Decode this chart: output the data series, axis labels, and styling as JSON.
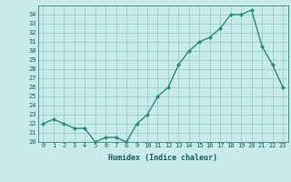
{
  "x": [
    0,
    1,
    2,
    3,
    4,
    5,
    6,
    7,
    8,
    9,
    10,
    11,
    12,
    13,
    14,
    15,
    16,
    17,
    18,
    19,
    20,
    21,
    22,
    23
  ],
  "y": [
    22,
    22.5,
    22,
    21.5,
    21.5,
    20,
    20.5,
    20.5,
    20,
    22,
    23,
    25,
    26,
    28.5,
    30,
    31,
    31.5,
    32.5,
    34,
    34,
    34.5,
    30.5,
    28.5,
    26
  ],
  "line_color": "#2e8b7a",
  "marker_color": "#2e8b7a",
  "bg_color": "#c8eaea",
  "grid_color": "#90c8c8",
  "xlabel": "Humidex (Indice chaleur)",
  "ylim": [
    20,
    35
  ],
  "xlim": [
    -0.5,
    23.5
  ],
  "yticks": [
    20,
    21,
    22,
    23,
    24,
    25,
    26,
    27,
    28,
    29,
    30,
    31,
    32,
    33,
    34
  ],
  "xticks": [
    0,
    1,
    2,
    3,
    4,
    5,
    6,
    7,
    8,
    9,
    10,
    11,
    12,
    13,
    14,
    15,
    16,
    17,
    18,
    19,
    20,
    21,
    22,
    23
  ],
  "tick_fontsize": 5.0,
  "xlabel_fontsize": 6.0,
  "line_width": 1.0,
  "marker_size": 2.2
}
